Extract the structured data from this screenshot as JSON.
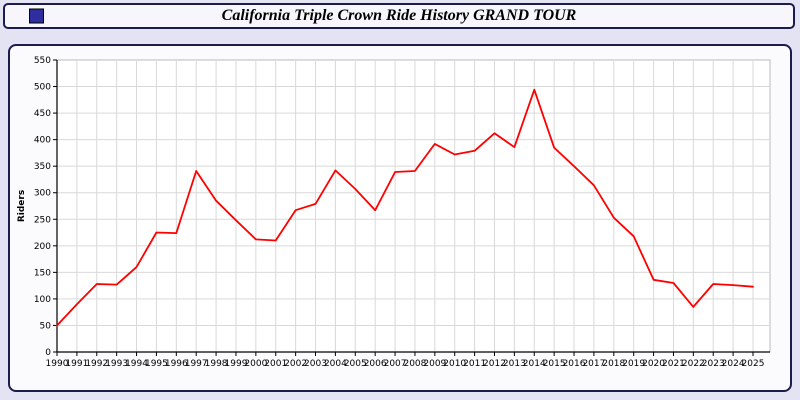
{
  "title_bar": {
    "title": "California Triple Crown Ride History GRAND TOUR",
    "icon_color": "#2e2e9e"
  },
  "colors": {
    "page_background": "#e3e3f4",
    "panel_background": "#fbfbfe",
    "panel_border": "#1b1b4d",
    "plot_background": "#ffffff",
    "grid": "#d9d9d9",
    "axis": "#000000",
    "line": "#ff0000"
  },
  "chart_data": {
    "type": "line",
    "title": "California Triple Crown Ride History GRAND TOUR",
    "xlabel": "",
    "ylabel": "Riders",
    "ylim": [
      0,
      550
    ],
    "ytick_interval": 50,
    "grid": true,
    "legend_position": "none",
    "line_color": "#ff0000",
    "x": [
      1990,
      1991,
      1992,
      1993,
      1994,
      1995,
      1996,
      1997,
      1998,
      1999,
      2000,
      2001,
      2002,
      2003,
      2004,
      2005,
      2006,
      2007,
      2008,
      2009,
      2010,
      2011,
      2012,
      2013,
      2014,
      2015,
      2016,
      2017,
      2018,
      2019,
      2020,
      2021,
      2022,
      2023,
      2024,
      2025
    ],
    "series": [
      {
        "name": "GRAND TOUR riders",
        "values": [
          50,
          90,
          128,
          127,
          160,
          225,
          224,
          341,
          285,
          248,
          212,
          210,
          267,
          279,
          342,
          307,
          267,
          339,
          341,
          392,
          372,
          379,
          412,
          386,
          494,
          385,
          350,
          314,
          253,
          218,
          136,
          130,
          85,
          128,
          126,
          123
        ]
      }
    ]
  }
}
